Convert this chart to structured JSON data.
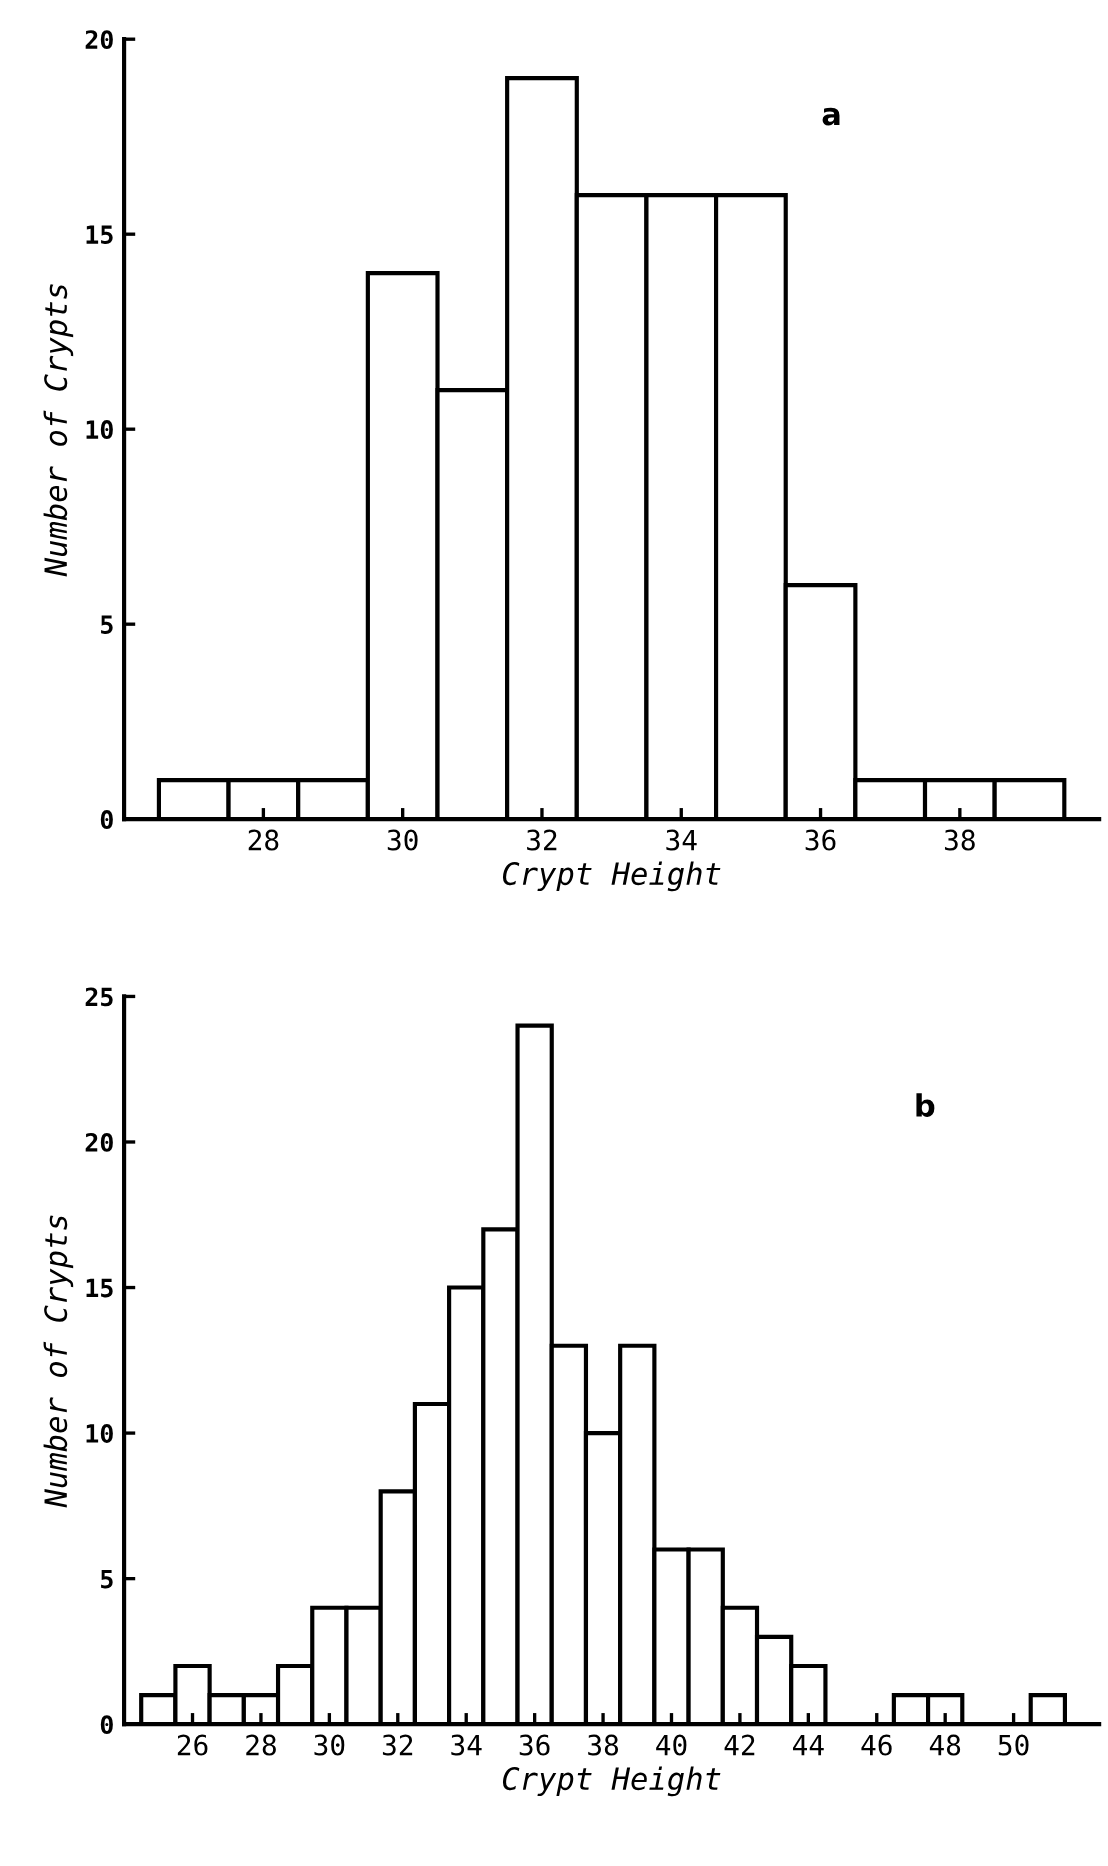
{
  "chart_data": [
    {
      "type": "histogram",
      "xlabel": "Crypt Height",
      "ylabel": "Number of Crypts",
      "annotations": [
        "a"
      ],
      "color": "#ffffff",
      "bins": [
        26.5,
        27.5,
        28.5,
        29.5,
        30.5,
        31.5,
        32.5,
        33.5,
        34.5,
        35.5,
        36.5,
        37.5,
        38.5,
        39.5
      ],
      "values": [
        1,
        1,
        1,
        14,
        11,
        19,
        16,
        16,
        16,
        6,
        1,
        1,
        1
      ],
      "xlim": [
        26,
        40
      ],
      "xticks": [
        28,
        30,
        32,
        34,
        36,
        38
      ],
      "ylim": [
        0,
        20
      ],
      "yticks": [
        0,
        5,
        10,
        15,
        20
      ],
      "grid": false,
      "legend": false
    },
    {
      "type": "histogram",
      "xlabel": "Crypt Height",
      "ylabel": "Number of Crypts",
      "annotations": [
        "b"
      ],
      "color": "#ffffff",
      "bins": [
        24.5,
        25.5,
        26.5,
        27.5,
        28.5,
        29.5,
        30.5,
        31.5,
        32.5,
        33.5,
        34.5,
        35.5,
        36.5,
        37.5,
        38.5,
        39.5,
        40.5,
        41.5,
        42.5,
        43.5,
        44.5,
        45.5,
        46.5,
        47.5,
        48.5,
        49.5,
        50.5,
        51.5
      ],
      "values": [
        1,
        2,
        1,
        1,
        2,
        4,
        4,
        8,
        11,
        15,
        17,
        24,
        13,
        10,
        13,
        6,
        6,
        4,
        3,
        2,
        0,
        0,
        1,
        1,
        0,
        0,
        1
      ],
      "xlim": [
        24,
        52.5
      ],
      "xticks": [
        26,
        28,
        30,
        32,
        34,
        36,
        38,
        40,
        42,
        44,
        46,
        48,
        50
      ],
      "ylim": [
        0,
        25
      ],
      "yticks": [
        0,
        5,
        10,
        15,
        20,
        25
      ],
      "grid": false,
      "legend": false
    }
  ]
}
